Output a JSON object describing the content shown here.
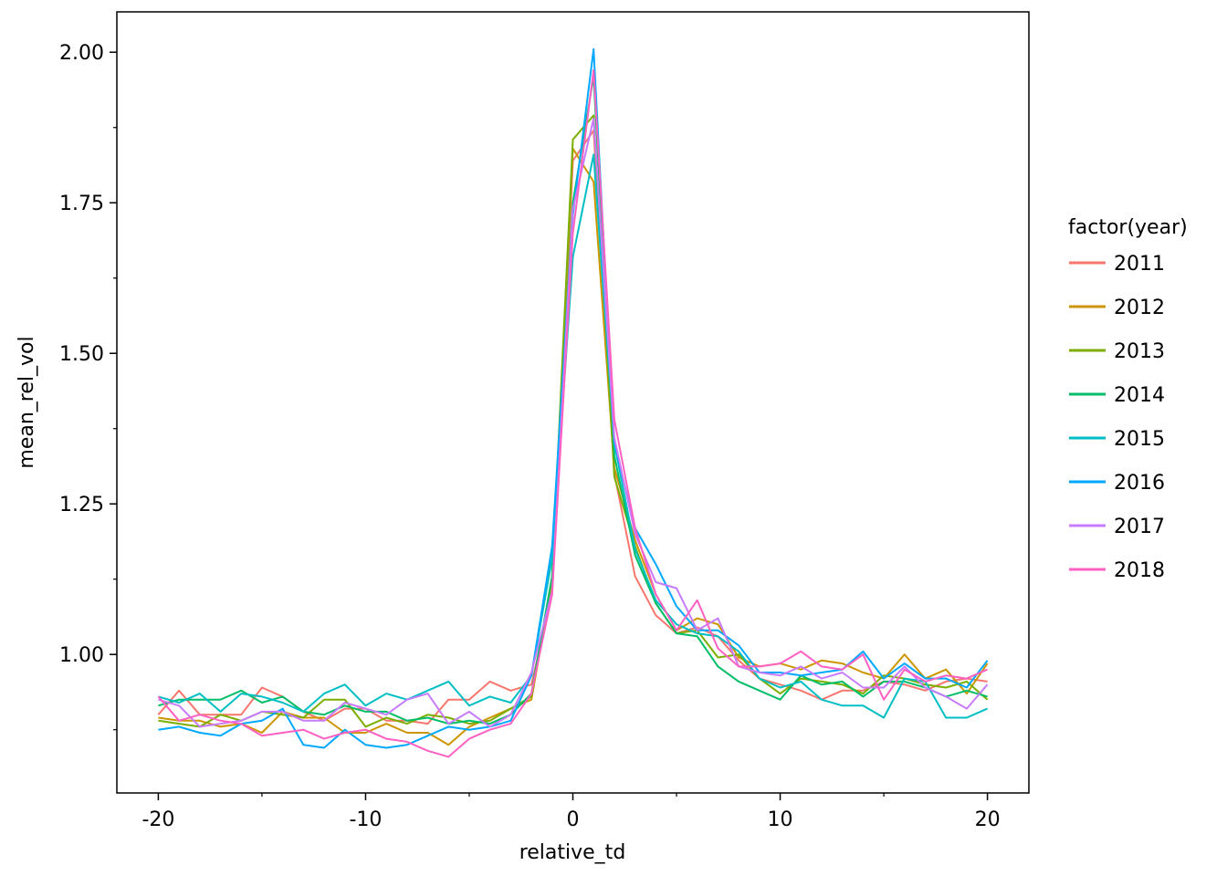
{
  "chart_data": {
    "type": "line",
    "title": "",
    "xlabel": "relative_td",
    "ylabel": "mean_rel_vol",
    "xlim": [
      -22,
      22
    ],
    "ylim": [
      0.77,
      2.067
    ],
    "x_major_ticks": [
      -20,
      -10,
      0,
      10,
      20
    ],
    "x_minor_ticks": [
      -15,
      -5,
      5,
      15
    ],
    "y_major_ticks": [
      1.0,
      1.25,
      1.5,
      1.75,
      2.0
    ],
    "y_minor_ticks": [
      0.875,
      1.125,
      1.375,
      1.625,
      1.875
    ],
    "x_tick_labels": [
      "-20",
      "-10",
      "0",
      "10",
      "20"
    ],
    "y_tick_labels": [
      "1.00",
      "1.25",
      "1.50",
      "1.75",
      "2.00"
    ],
    "grid": false,
    "legend": {
      "title": "factor(year)",
      "placement": "right"
    },
    "x": [
      -20,
      -19,
      -18,
      -17,
      -16,
      -15,
      -14,
      -13,
      -12,
      -11,
      -10,
      -9,
      -8,
      -7,
      -6,
      -5,
      -4,
      -3,
      -2,
      -1,
      0,
      1,
      2,
      3,
      4,
      5,
      6,
      7,
      8,
      9,
      10,
      11,
      12,
      13,
      14,
      15,
      16,
      17,
      18,
      19,
      20
    ],
    "series": [
      {
        "name": "2011",
        "color": "#F8766D",
        "values": [
          0.9,
          0.94,
          0.9,
          0.9,
          0.9,
          0.945,
          0.93,
          0.905,
          0.89,
          0.91,
          0.91,
          0.89,
          0.89,
          0.885,
          0.925,
          0.925,
          0.955,
          0.94,
          0.95,
          1.1,
          1.82,
          1.87,
          1.3,
          1.13,
          1.065,
          1.035,
          1.045,
          1.03,
          0.99,
          0.96,
          0.95,
          0.94,
          0.925,
          0.94,
          0.94,
          0.955,
          0.95,
          0.94,
          0.955,
          0.96,
          0.955
        ]
      },
      {
        "name": "2012",
        "color": "#CD9600",
        "values": [
          0.895,
          0.89,
          0.89,
          0.88,
          0.885,
          0.87,
          0.905,
          0.895,
          0.895,
          0.87,
          0.87,
          0.885,
          0.87,
          0.87,
          0.85,
          0.88,
          0.895,
          0.91,
          0.925,
          1.12,
          1.84,
          1.785,
          1.31,
          1.19,
          1.1,
          1.04,
          1.06,
          1.05,
          0.995,
          0.98,
          0.985,
          0.975,
          0.99,
          0.985,
          0.97,
          0.96,
          1.0,
          0.96,
          0.975,
          0.935,
          0.985
        ]
      },
      {
        "name": "2013",
        "color": "#7CAE00",
        "values": [
          0.89,
          0.885,
          0.88,
          0.9,
          0.89,
          0.905,
          0.9,
          0.895,
          0.925,
          0.925,
          0.88,
          0.895,
          0.885,
          0.9,
          0.895,
          0.885,
          0.89,
          0.91,
          0.93,
          1.13,
          1.855,
          1.895,
          1.295,
          1.18,
          1.085,
          1.035,
          1.04,
          0.995,
          1.0,
          0.96,
          0.935,
          0.96,
          0.955,
          0.95,
          0.935,
          0.965,
          0.96,
          0.95,
          0.945,
          0.955,
          0.925
        ]
      },
      {
        "name": "2014",
        "color": "#00BE67",
        "values": [
          0.915,
          0.925,
          0.925,
          0.925,
          0.94,
          0.92,
          0.93,
          0.905,
          0.9,
          0.915,
          0.905,
          0.905,
          0.89,
          0.895,
          0.885,
          0.89,
          0.885,
          0.9,
          0.935,
          1.13,
          1.75,
          1.96,
          1.33,
          1.165,
          1.085,
          1.035,
          1.03,
          0.98,
          0.955,
          0.94,
          0.925,
          0.965,
          0.95,
          0.955,
          0.93,
          0.955,
          0.955,
          0.945,
          0.93,
          0.94,
          0.93
        ]
      },
      {
        "name": "2015",
        "color": "#00BFC4",
        "values": [
          0.93,
          0.92,
          0.935,
          0.905,
          0.935,
          0.93,
          0.92,
          0.905,
          0.935,
          0.95,
          0.915,
          0.935,
          0.925,
          0.94,
          0.955,
          0.915,
          0.93,
          0.92,
          0.965,
          1.16,
          1.66,
          1.83,
          1.35,
          1.175,
          1.09,
          1.05,
          1.035,
          1.03,
          1.005,
          0.96,
          0.945,
          0.955,
          0.925,
          0.915,
          0.915,
          0.895,
          0.96,
          0.955,
          0.895,
          0.895,
          0.91
        ]
      },
      {
        "name": "2016",
        "color": "#00A9FF",
        "values": [
          0.875,
          0.88,
          0.87,
          0.865,
          0.885,
          0.89,
          0.91,
          0.85,
          0.845,
          0.875,
          0.85,
          0.845,
          0.85,
          0.865,
          0.88,
          0.875,
          0.88,
          0.89,
          0.965,
          1.18,
          1.73,
          2.005,
          1.35,
          1.21,
          1.15,
          1.08,
          1.04,
          1.04,
          1.015,
          0.97,
          0.97,
          0.965,
          0.97,
          0.975,
          1.005,
          0.96,
          0.985,
          0.96,
          0.96,
          0.945,
          0.99
        ]
      },
      {
        "name": "2017",
        "color": "#C77CFF",
        "values": [
          0.925,
          0.915,
          0.88,
          0.885,
          0.89,
          0.905,
          0.905,
          0.89,
          0.89,
          0.92,
          0.91,
          0.9,
          0.925,
          0.935,
          0.885,
          0.905,
          0.88,
          0.9,
          0.97,
          1.105,
          1.74,
          1.89,
          1.36,
          1.2,
          1.12,
          1.11,
          1.04,
          1.06,
          0.98,
          0.97,
          0.965,
          0.98,
          0.96,
          0.97,
          0.945,
          0.945,
          0.98,
          0.945,
          0.93,
          0.91,
          0.95
        ]
      },
      {
        "name": "2018",
        "color": "#FF61C3",
        "values": [
          0.93,
          0.89,
          0.9,
          0.89,
          0.885,
          0.865,
          0.87,
          0.875,
          0.86,
          0.87,
          0.875,
          0.86,
          0.855,
          0.84,
          0.83,
          0.86,
          0.875,
          0.885,
          0.935,
          1.1,
          1.7,
          1.97,
          1.39,
          1.21,
          1.1,
          1.04,
          1.09,
          1.01,
          0.98,
          0.98,
          0.985,
          1.005,
          0.98,
          0.975,
          1.0,
          0.925,
          0.975,
          0.955,
          0.965,
          0.96,
          0.975
        ]
      }
    ]
  }
}
